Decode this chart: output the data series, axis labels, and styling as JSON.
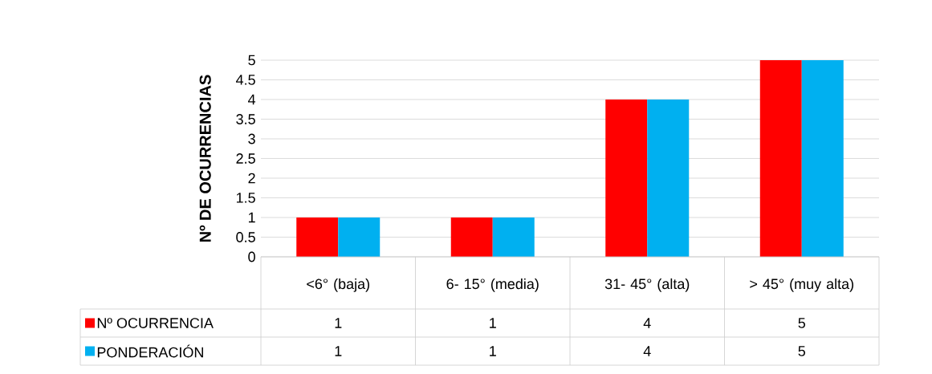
{
  "chart_data": {
    "type": "bar",
    "ylabel": "Nº DE OCURRENCIAS",
    "categories": [
      "<6° (baja)",
      "6- 15° (media)",
      "31- 45° (alta)",
      "> 45° (muy alta)"
    ],
    "series": [
      {
        "name": "Nº OCURRENCIA",
        "color": "#ff0000",
        "values": [
          1,
          1,
          4,
          5
        ]
      },
      {
        "name": "PONDERACIÓN",
        "color": "#00b0f0",
        "values": [
          1,
          1,
          4,
          5
        ]
      }
    ],
    "ylim": [
      0,
      5
    ],
    "yticks": [
      0,
      0.5,
      1,
      1.5,
      2,
      2.5,
      3,
      3.5,
      4,
      4.5,
      5
    ],
    "grid": "y",
    "legend": "bottom",
    "data_labels": true
  }
}
